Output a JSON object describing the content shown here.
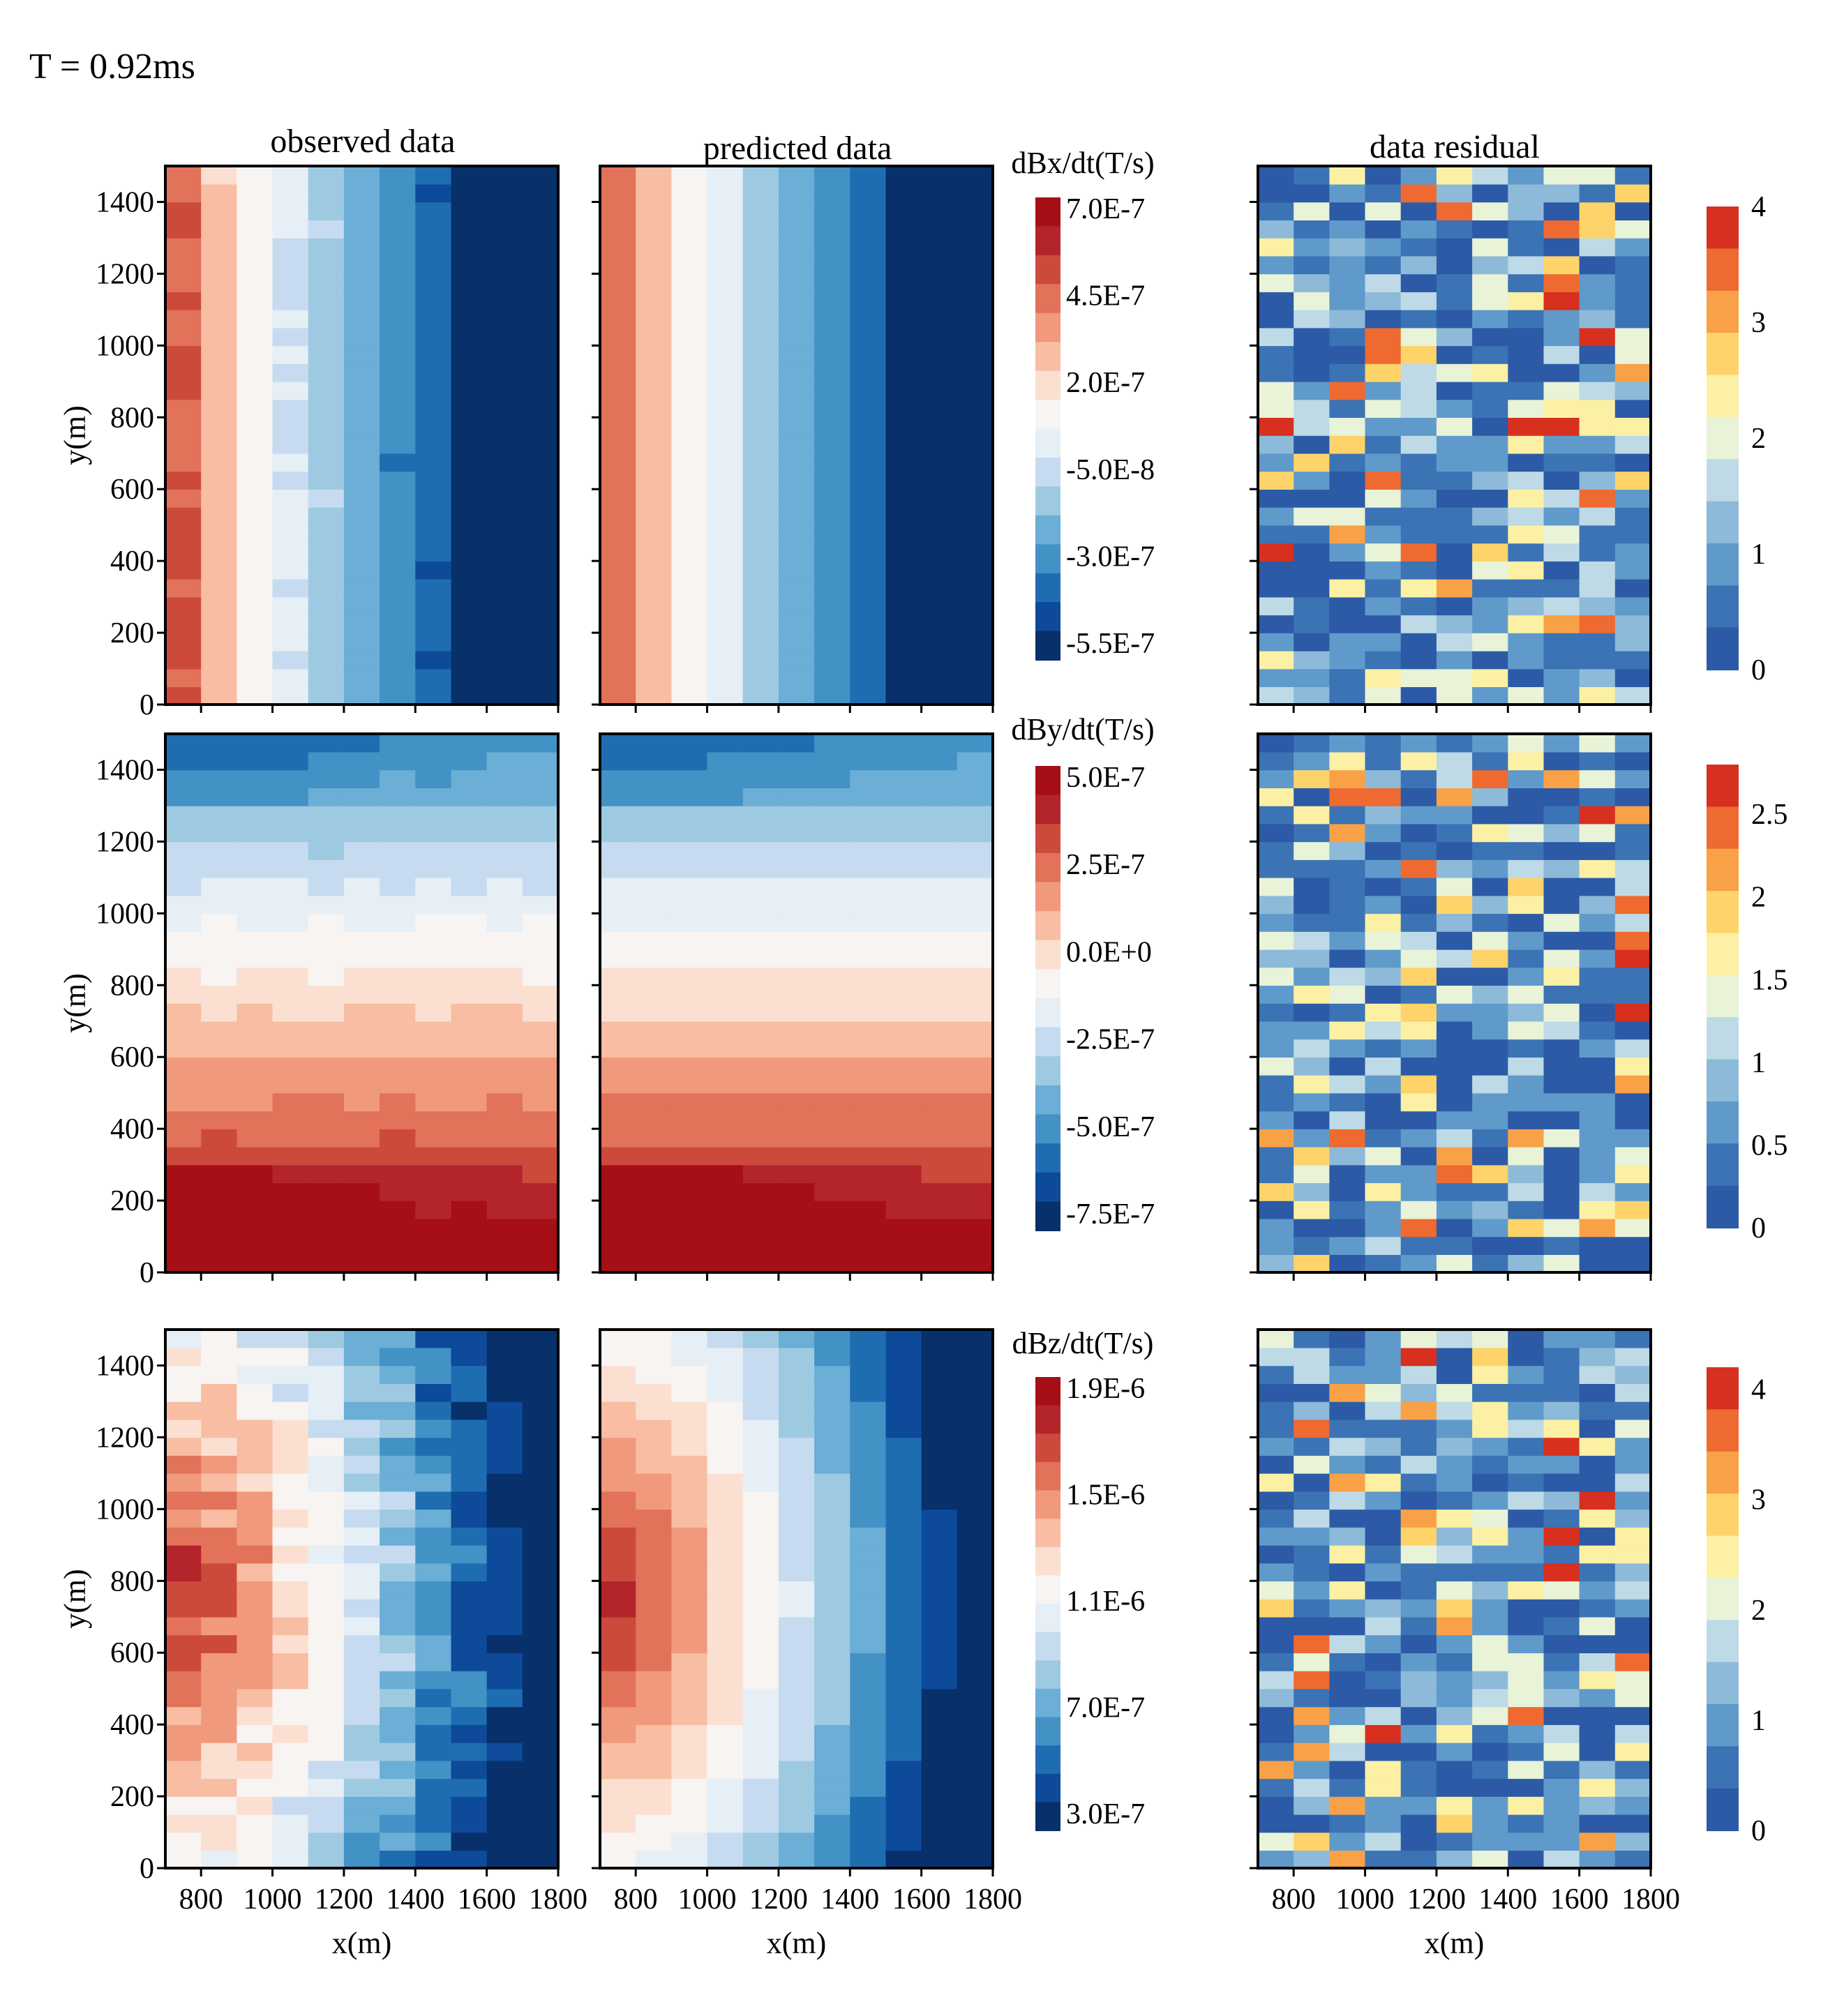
{
  "figure_title": "T = 0.92ms",
  "column_titles": [
    "observed data",
    "predicted data",
    "data residual"
  ],
  "axes": {
    "xlabel": "x(m)",
    "ylabel": "y(m)",
    "x_ticks": [
      "800",
      "1000",
      "1200",
      "1400",
      "1600",
      "1800"
    ],
    "y_ticks": [
      "0",
      "200",
      "400",
      "600",
      "800",
      "1000",
      "1200",
      "1400"
    ]
  },
  "chart_data": [
    {
      "type": "heatmap",
      "component": "dBx/dt",
      "colorbar_title": "dBx/dt(T/s)",
      "colorbar_ticks": [
        "7.0E-7",
        "4.5E-7",
        "2.0E-7",
        "-5.0E-8",
        "-3.0E-7",
        "-5.5E-7"
      ],
      "vmin": -5.5e-07,
      "vmax": 7e-07,
      "xlim": [
        700,
        1800
      ],
      "ylim": [
        0,
        1500
      ],
      "observed_pattern": "strong positive values near x=700-850 decreasing eastward to about -5.5E-7 near x=1500-1650",
      "predicted_pattern": "smooth version of observed; minimum near x=1550-1650, y=600-1300",
      "residual": {
        "colorbar_ticks": [
          "4",
          "3",
          "2",
          "1",
          "0"
        ],
        "vmin": 0,
        "vmax": 4
      }
    },
    {
      "type": "heatmap",
      "component": "dBy/dt",
      "colorbar_title": "dBy/dt(T/s)",
      "colorbar_ticks": [
        "5.0E-7",
        "2.5E-7",
        "0.0E+0",
        "-2.5E-7",
        "-5.0E-7",
        "-7.5E-7"
      ],
      "vmin": -7.5e-07,
      "vmax": 5e-07,
      "xlim": [
        700,
        1800
      ],
      "ylim": [
        0,
        1500
      ],
      "observed_pattern": "negative near y=1450 (about -7.5E-7), zero near y=800, positive maximum about 5.0E-7 near x=800, y=150",
      "predicted_pattern": "smooth version of observed",
      "residual": {
        "colorbar_ticks": [
          "2.5",
          "2",
          "1.5",
          "1",
          "0.5",
          "0"
        ],
        "vmin": 0,
        "vmax": 2.8
      }
    },
    {
      "type": "heatmap",
      "component": "dBz/dt",
      "colorbar_title": "dBz/dt(T/s)",
      "colorbar_ticks": [
        "1.9E-6",
        "1.5E-6",
        "1.1E-6",
        "7.0E-7",
        "3.0E-7"
      ],
      "vmin": 3e-07,
      "vmax": 2.1e-06,
      "xlim": [
        700,
        1800
      ],
      "ylim": [
        0,
        1500
      ],
      "observed_pattern": "maximum about 1.9E-6 near x=700-900, y=500-1100, decreasing eastward to about 3.0E-7 near x=1800",
      "predicted_pattern": "smooth bullseye centered near x=750, y=750 decreasing outward",
      "residual": {
        "colorbar_ticks": [
          "4",
          "3",
          "2",
          "1",
          "0"
        ],
        "vmin": 0,
        "vmax": 4.2
      }
    }
  ],
  "colors": {
    "scale": [
      "#08306b",
      "#0d4a9a",
      "#1f6db1",
      "#4292c6",
      "#6baed6",
      "#9ecae1",
      "#c6dbef",
      "#e6eef6",
      "#f7f4f2",
      "#fbe0d2",
      "#f8bda2",
      "#f0997c",
      "#e2725a",
      "#cc4a3c",
      "#b4242b",
      "#a50f15"
    ],
    "residual_scale": [
      "#2c5aa6",
      "#3b73b5",
      "#5f9acb",
      "#8dbad8",
      "#bddae6",
      "#e8f3d8",
      "#fbf0a4",
      "#fdd36a",
      "#f9a146",
      "#ee6a30",
      "#d7301f"
    ]
  }
}
